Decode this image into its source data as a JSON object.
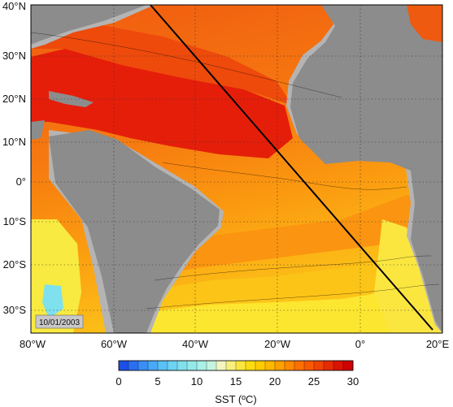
{
  "map": {
    "date_stamp": "10/01/2003",
    "land_color": "#8c8c8c",
    "shelf_color": "#b4b4b4",
    "track_color": "#000000",
    "lat_labels": [
      "40°N",
      "30°N",
      "20°N",
      "10°N",
      "0°",
      "10°S",
      "20°S",
      "30°S"
    ],
    "lon_labels": [
      "80°W",
      "60°W",
      "40°W",
      "20°W",
      "0°",
      "20°E"
    ]
  },
  "colorbar": {
    "title": "SST (ºC)",
    "ticks": [
      "0",
      "5",
      "10",
      "15",
      "20",
      "25",
      "30"
    ],
    "colors": [
      "#1e50e6",
      "#2a6ff0",
      "#3a8ef5",
      "#49a8f7",
      "#5ac0f5",
      "#6dd3f2",
      "#80e0ee",
      "#95e8ea",
      "#aaf0e6",
      "#c4f4e0",
      "#f2f5c0",
      "#f7f080",
      "#fbe640",
      "#fddb10",
      "#ffcc00",
      "#ffb800",
      "#ffa000",
      "#ff8800",
      "#ff7000",
      "#f85a00",
      "#ee4400",
      "#e42c00",
      "#da1400",
      "#d00000"
    ]
  }
}
